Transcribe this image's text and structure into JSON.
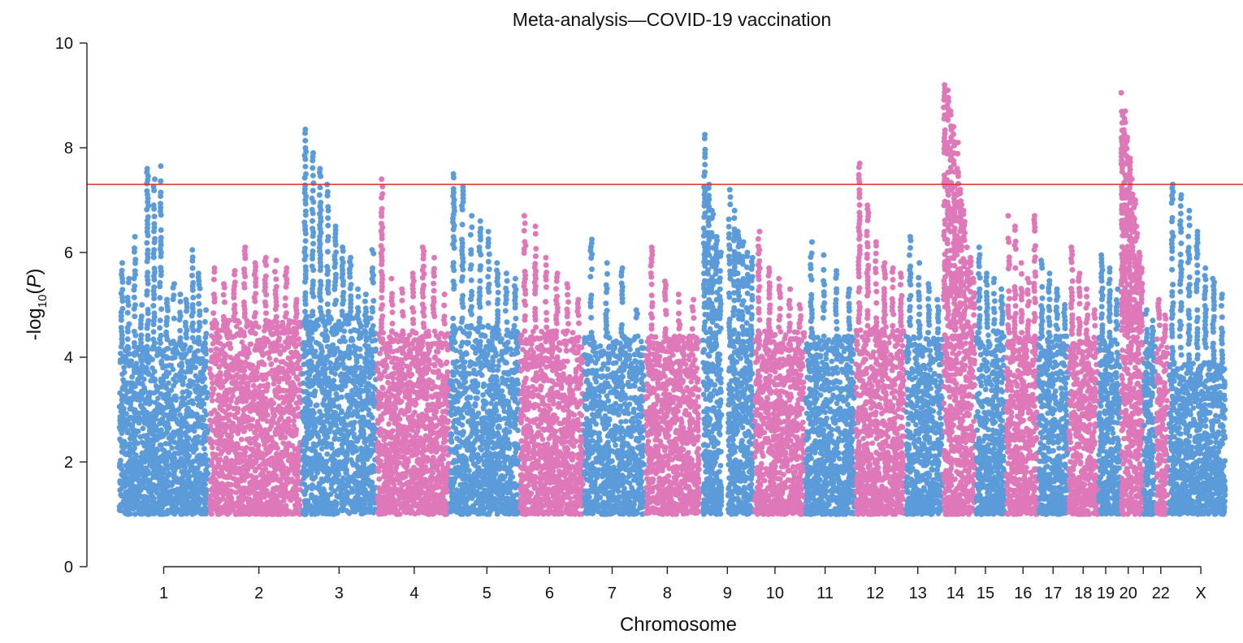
{
  "chart_data": {
    "type": "scatter",
    "title": "Meta-analysis—COVID-19 vaccination",
    "xlabel": "Chromosome",
    "ylabel": {
      "prefix": "-log",
      "subscript": "10",
      "open": "(",
      "var": "P",
      "close": ")"
    },
    "ylim": [
      0,
      10
    ],
    "yticks": [
      "0",
      "2",
      "4",
      "6",
      "8",
      "10"
    ],
    "grid": false,
    "legend": "none",
    "significance_threshold": 7.3,
    "threshold_color": "#d9302a",
    "colors": {
      "blue": "#5b9bd9",
      "pink": "#de78b8"
    },
    "display_floor": 1.0,
    "chromosomes": [
      {
        "label": "1",
        "color": "blue",
        "span": [
          0.0,
          10.3
        ],
        "base_max": 4.2,
        "top_points": [
          5.8,
          5.5,
          6.3,
          5.0,
          7.6,
          7.4,
          7.65,
          5.1
        ]
      },
      {
        "label": "",
        "color": "blue",
        "span": [
          10.3,
          18.0
        ],
        "base_max": 4.3,
        "top_points": [
          5.4,
          5.2,
          5.1,
          6.05,
          5.6,
          4.9
        ]
      },
      {
        "label": "2",
        "color": "pink",
        "span": [
          18.0,
          36.5
        ],
        "base_max": 4.7,
        "top_points": [
          5.7,
          5.4,
          5.65,
          6.1,
          5.8,
          5.9,
          5.85,
          5.7,
          5.1
        ]
      },
      {
        "label": "3",
        "color": "blue",
        "span": [
          36.5,
          51.5
        ],
        "base_max": 4.8,
        "top_points": [
          8.35,
          7.9,
          7.6,
          7.3,
          6.5,
          6.1,
          5.9,
          5.3,
          5.2,
          6.05
        ]
      },
      {
        "label": "4",
        "color": "pink",
        "span": [
          51.5,
          66.0
        ],
        "base_max": 4.5,
        "top_points": [
          7.4,
          5.5,
          5.3,
          5.6,
          6.1,
          5.9,
          5.2
        ]
      },
      {
        "label": "5",
        "color": "blue",
        "span": [
          66.0,
          80.0
        ],
        "base_max": 4.6,
        "top_points": [
          7.5,
          7.25,
          6.7,
          6.6,
          6.4,
          5.8,
          5.6,
          5.5
        ]
      },
      {
        "label": "6",
        "color": "pink",
        "span": [
          80.0,
          92.8
        ],
        "base_max": 4.5,
        "top_points": [
          6.7,
          6.5,
          5.9,
          5.6,
          5.4,
          5.1
        ]
      },
      {
        "label": "7",
        "color": "blue",
        "span": [
          92.8,
          105.0
        ],
        "base_max": 4.4,
        "top_points": [
          6.25,
          5.8,
          5.7,
          4.9
        ]
      },
      {
        "label": "8",
        "color": "pink",
        "span": [
          105.0,
          116.0
        ],
        "base_max": 4.4,
        "top_points": [
          6.1,
          5.45,
          5.2,
          5.1
        ]
      },
      {
        "label": "",
        "color": "blue",
        "span": [
          116.5,
          120.5
        ],
        "base_max": 4.6,
        "top_points": [
          8.25,
          7.3,
          6.8,
          6.3,
          6.0
        ]
      },
      {
        "label": "9",
        "color": "blue",
        "span": [
          121.5,
          126.8
        ],
        "base_max": 4.3,
        "top_points": [
          7.2,
          6.8,
          6.4,
          6.2,
          6.0,
          5.9
        ]
      },
      {
        "label": "10",
        "color": "pink",
        "span": [
          126.8,
          137.0
        ],
        "base_max": 4.5,
        "top_points": [
          6.4,
          5.7,
          5.5,
          5.3,
          5.0
        ]
      },
      {
        "label": "11",
        "color": "blue",
        "span": [
          137.0,
          147.0
        ],
        "base_max": 4.4,
        "top_points": [
          6.2,
          5.95,
          5.65,
          5.3
        ]
      },
      {
        "label": "12",
        "color": "pink",
        "span": [
          147.0,
          157.0
        ],
        "base_max": 4.6,
        "top_points": [
          7.7,
          6.9,
          6.2,
          5.8,
          5.7,
          5.6
        ]
      },
      {
        "label": "13",
        "color": "blue",
        "span": [
          157.0,
          164.5
        ],
        "base_max": 4.4,
        "top_points": [
          6.3,
          5.8,
          5.4,
          5.1
        ]
      },
      {
        "label": "14",
        "color": "pink",
        "span": [
          164.5,
          171.0
        ],
        "base_max": 4.6,
        "top_points": [
          9.2,
          9.1,
          8.7,
          8.4,
          8.1,
          7.2,
          6.8,
          6.1,
          5.9,
          5.5
        ]
      },
      {
        "label": "15",
        "color": "blue",
        "span": [
          171.0,
          177.0
        ],
        "base_max": 4.5,
        "top_points": [
          6.1,
          5.6,
          5.5,
          5.3
        ]
      },
      {
        "label": "16",
        "color": "pink",
        "span": [
          177.0,
          183.5
        ],
        "base_max": 4.4,
        "top_points": [
          6.7,
          6.5,
          5.8,
          5.5,
          6.7
        ]
      },
      {
        "label": "17",
        "color": "blue",
        "span": [
          183.5,
          189.5
        ],
        "base_max": 4.4,
        "top_points": [
          5.85,
          5.6,
          5.3,
          5.0
        ]
      },
      {
        "label": "18",
        "color": "pink",
        "span": [
          189.5,
          195.5
        ],
        "base_max": 4.3,
        "top_points": [
          6.1,
          5.6,
          5.3,
          4.9
        ]
      },
      {
        "label": "19",
        "color": "blue",
        "span": [
          195.5,
          200.0
        ],
        "base_max": 4.4,
        "top_points": [
          5.95,
          5.7,
          5.3
        ]
      },
      {
        "label": "20",
        "color": "pink",
        "span": [
          200.0,
          204.5
        ],
        "base_max": 4.6,
        "top_points": [
          9.05,
          8.7,
          8.2,
          7.8,
          7.4,
          7.0,
          6.5,
          6.0,
          5.7
        ]
      },
      {
        "label": "",
        "color": "blue",
        "span": [
          204.5,
          207.0
        ],
        "base_max": 4.3,
        "top_points": [
          4.9,
          4.7
        ]
      },
      {
        "label": "22",
        "color": "pink",
        "span": [
          207.0,
          209.5
        ],
        "base_max": 4.4,
        "top_points": [
          5.1,
          4.8
        ]
      },
      {
        "label": "X",
        "color": "blue",
        "span": [
          209.5,
          221.0
        ],
        "base_max": 3.9,
        "top_points": [
          7.3,
          7.1,
          6.8,
          6.4,
          5.7,
          5.5,
          5.2
        ]
      }
    ],
    "xticks": [
      {
        "label": "1",
        "pos": 9.0
      },
      {
        "label": "2",
        "pos": 28.0
      },
      {
        "label": "3",
        "pos": 44.0
      },
      {
        "label": "4",
        "pos": 59.0
      },
      {
        "label": "5",
        "pos": 73.5
      },
      {
        "label": "6",
        "pos": 86.0
      },
      {
        "label": "7",
        "pos": 98.5
      },
      {
        "label": "8",
        "pos": 109.5
      },
      {
        "label": "9",
        "pos": 121.5
      },
      {
        "label": "10",
        "pos": 131.0
      },
      {
        "label": "11",
        "pos": 141.0
      },
      {
        "label": "12",
        "pos": 151.0
      },
      {
        "label": "13",
        "pos": 159.5
      },
      {
        "label": "14",
        "pos": 167.0
      },
      {
        "label": "15",
        "pos": 173.0
      },
      {
        "label": "16",
        "pos": 180.5
      },
      {
        "label": "17",
        "pos": 186.5
      },
      {
        "label": "18",
        "pos": 192.5
      },
      {
        "label": "19",
        "pos": 197.0
      },
      {
        "label": "20",
        "pos": 201.5
      },
      {
        "label": "",
        "pos": 204.5
      },
      {
        "label": "22",
        "pos": 208.0
      },
      {
        "label": "X",
        "pos": 216.0
      }
    ]
  }
}
